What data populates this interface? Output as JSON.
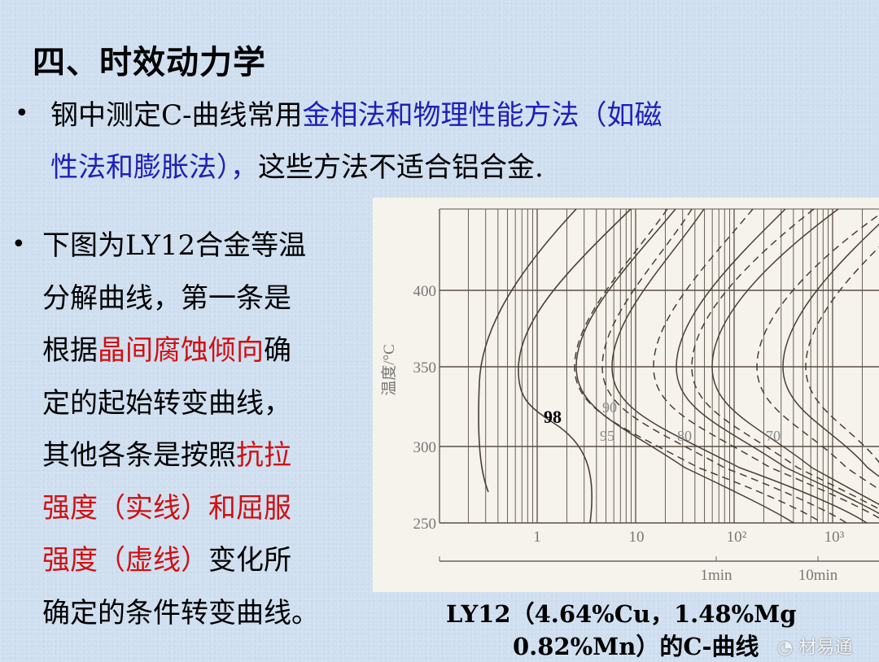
{
  "title": "四、时效动力学",
  "bullet1": {
    "lines": [
      [
        {
          "t": "钢中测定C-曲线常用",
          "c": ""
        },
        {
          "t": "金相法和物理性能方法（如磁",
          "c": "blue"
        }
      ],
      [
        {
          "t": "性法和膨胀法），",
          "c": "blue"
        },
        {
          "t": "这些方法不适合铝合金.",
          "c": ""
        }
      ]
    ]
  },
  "bullet2": {
    "lines": [
      [
        {
          "t": "下图为LY12合金等温",
          "c": ""
        }
      ],
      [
        {
          "t": "分解曲线，第一条是",
          "c": ""
        }
      ],
      [
        {
          "t": "根据",
          "c": ""
        },
        {
          "t": "晶间腐蚀倾向",
          "c": "red"
        },
        {
          "t": "确",
          "c": ""
        }
      ],
      [
        {
          "t": "定的起始转变曲线，",
          "c": ""
        }
      ],
      [
        {
          "t": "其他各条是按照",
          "c": ""
        },
        {
          "t": "抗拉",
          "c": "red"
        }
      ],
      [
        {
          "t": "强度（实线）和屈服",
          "c": "red"
        }
      ],
      [
        {
          "t": "强度（虚线）",
          "c": "red"
        },
        {
          "t": "变化所",
          "c": ""
        }
      ],
      [
        {
          "t": "确定的条件转变曲线。",
          "c": ""
        }
      ]
    ]
  },
  "bullet_glyph": "•",
  "figure": {
    "ylabel": "温度/°C",
    "yticks": [
      "400",
      "350",
      "300",
      "250"
    ],
    "xticks": [
      "1",
      "10",
      "10²",
      "10³"
    ],
    "time_ticks": [
      "1min",
      "10min"
    ],
    "curve_labels": [
      "98",
      "90",
      "95",
      "80",
      "70"
    ],
    "line_styles": {
      "solid": "抗拉强度",
      "dashed": "屈服强度"
    }
  },
  "caption": {
    "line1": "LY12（4.64%Cu，1.48%Mg",
    "line2": "0.82%Mn）的C-曲线"
  },
  "watermark": "材易通",
  "colors": {
    "text_blue": "#1f1fb8",
    "text_red": "#d01010",
    "background": "#cfdff0",
    "curve": "#4a3f36"
  }
}
